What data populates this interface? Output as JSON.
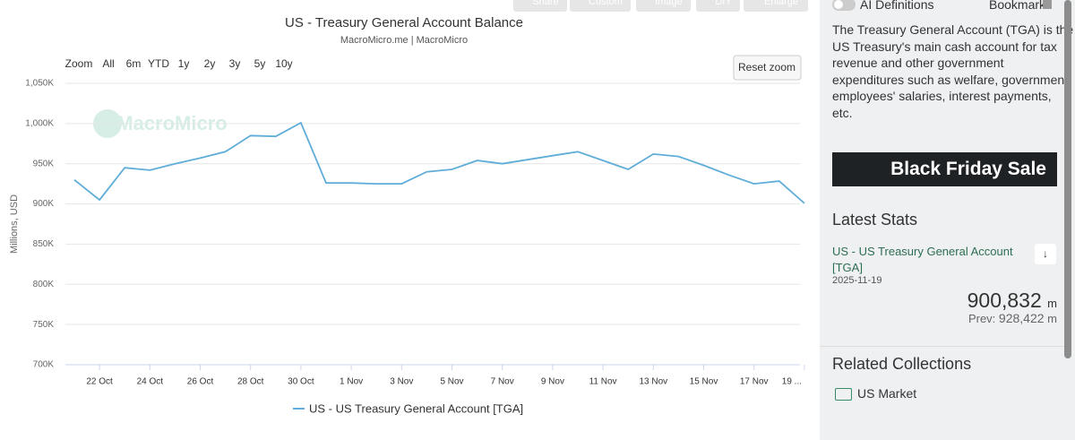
{
  "toolbar": {
    "buttons": [
      "Share",
      "Custom",
      "Image",
      "DIY",
      "Enlarge"
    ]
  },
  "zoom": {
    "label": "Zoom",
    "options": [
      "All",
      "6m",
      "YTD",
      "1y",
      "2y",
      "3y",
      "5y",
      "10y"
    ],
    "reset": "Reset zoom"
  },
  "chart_data": {
    "type": "line",
    "title": "US - Treasury General Account Balance",
    "subtitle": "MacroMicro.me | MacroMicro",
    "watermark": "MacroMicro",
    "y_label": "Millions, USD",
    "categories": [
      null,
      "22 Oct",
      null,
      "24 Oct",
      null,
      "26 Oct",
      null,
      "28 Oct",
      null,
      "30 Oct",
      null,
      "1 Nov",
      null,
      "3 Nov",
      null,
      "5 Nov",
      null,
      "7 Nov",
      null,
      "9 Nov",
      null,
      "11 Nov",
      null,
      "13 Nov",
      null,
      "15 Nov",
      null,
      "17 Nov",
      null,
      "19 ..."
    ],
    "series": [
      {
        "name": "US - US Treasury General Account [TGA]",
        "color": "#5fadd8",
        "values": [
          930000,
          905000,
          945000,
          942000,
          950000,
          957000,
          965000,
          985000,
          984000,
          1001000,
          926000,
          926000,
          925000,
          925000,
          940000,
          943000,
          954000,
          950000,
          955000,
          960000,
          965000,
          954000,
          943000,
          962000,
          959000,
          948000,
          936000,
          925000,
          928422,
          900832
        ]
      }
    ],
    "ylim": [
      700000,
      1050000
    ],
    "yticks": [
      {
        "value": 700000,
        "label": "700K"
      },
      {
        "value": 750000,
        "label": "750K"
      },
      {
        "value": 800000,
        "label": "800K"
      },
      {
        "value": 850000,
        "label": "850K"
      },
      {
        "value": 900000,
        "label": "900K"
      },
      {
        "value": 950000,
        "label": "950K"
      },
      {
        "value": 1000000,
        "label": "1,000K"
      },
      {
        "value": 1050000,
        "label": "1,050K"
      }
    ],
    "grid": true
  },
  "sidebar": {
    "toggle": "AI Definitions",
    "bookmark": "Bookmark",
    "definition": [
      "The Treasury General Account (TGA) is the",
      "US Treasury's main cash account for tax",
      "revenue and other government",
      "expenditures such as welfare, government",
      "employees' salaries, interest payments,",
      "etc."
    ],
    "banner": "Black Friday Sale",
    "latest_heading": "Latest Stats",
    "stat": {
      "name": [
        "US - US Treasury General Account",
        "[TGA]"
      ],
      "date": "2025-11-19",
      "value": "900,832",
      "unit": "m",
      "prev_label": "Prev:",
      "prev": "928,422",
      "prev_unit": "m"
    },
    "related_heading": "Related Collections",
    "collection": "US Market"
  }
}
